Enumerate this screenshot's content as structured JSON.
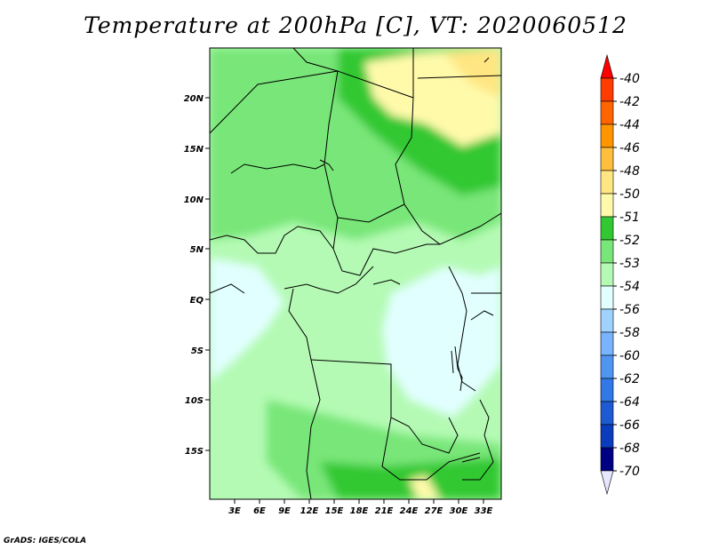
{
  "title": "Temperature at 200hPa [C], VT: 2020060512",
  "credit": "GrADS: IGES/COLA",
  "map": {
    "lat_labels": [
      "20N",
      "15N",
      "10N",
      "5N",
      "EQ",
      "5S",
      "10S",
      "15S"
    ],
    "lon_labels": [
      "3E",
      "6E",
      "9E",
      "12E",
      "15E",
      "18E",
      "21E",
      "24E",
      "27E",
      "30E",
      "33E"
    ]
  },
  "colorbar": {
    "labels": [
      "-40",
      "-42",
      "-44",
      "-46",
      "-48",
      "-50",
      "-51",
      "-52",
      "-53",
      "-54",
      "-56",
      "-58",
      "-60",
      "-62",
      "-64",
      "-66",
      "-68",
      "-70"
    ],
    "colors": [
      "#ff0000",
      "#ff3c00",
      "#ff6400",
      "#ff9600",
      "#ffbe3c",
      "#ffe682",
      "#fffaaa",
      "#32c832",
      "#78e678",
      "#b4fab4",
      "#e1ffff",
      "#a0d2ff",
      "#78b4ff",
      "#5096f0",
      "#3278e6",
      "#1e5ad2",
      "#0a3cbe",
      "#000082",
      "#e6e6ff"
    ]
  }
}
